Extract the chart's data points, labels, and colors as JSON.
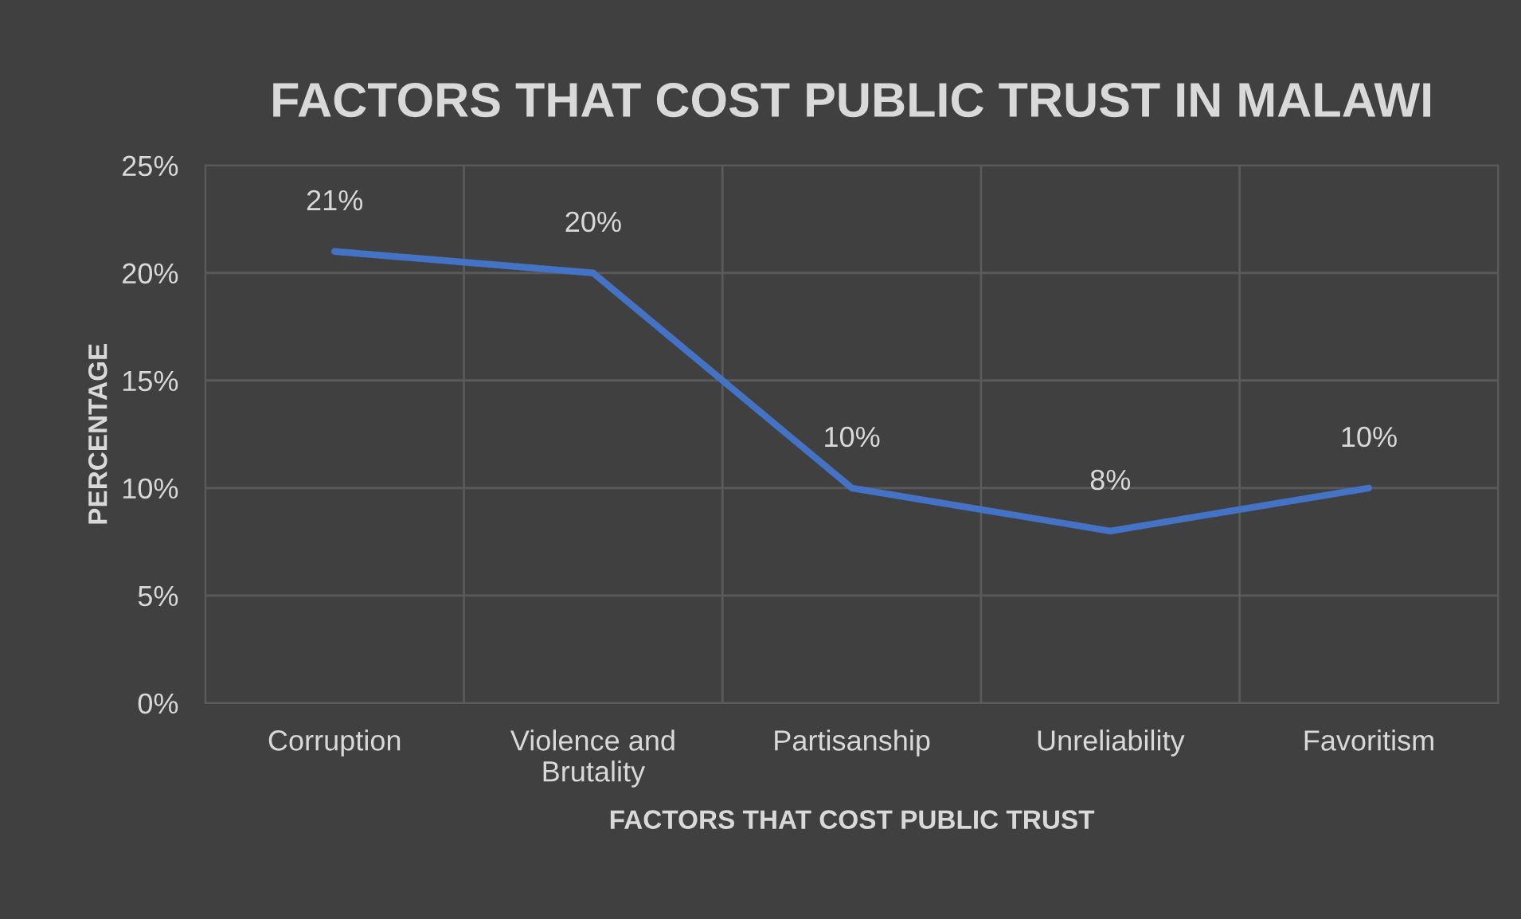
{
  "chart_data": {
    "type": "line",
    "title": "FACTORS THAT COST PUBLIC TRUST IN MALAWI",
    "xlabel": "FACTORS THAT COST PUBLIC TRUST",
    "ylabel": "PERCENTAGE",
    "categories": [
      "Corruption",
      "Violence and Brutality",
      "Partisanship",
      "Unreliability",
      "Favoritism"
    ],
    "series": [
      {
        "color": "#4472c4",
        "values": [
          21,
          20,
          10,
          8,
          10
        ],
        "value_labels": [
          "21%",
          "20%",
          "10%",
          "8%",
          "10%"
        ]
      }
    ],
    "ylim": [
      0,
      25
    ],
    "yticks": [
      {
        "value": 0,
        "label": "0%"
      },
      {
        "value": 5,
        "label": "5%"
      },
      {
        "value": 10,
        "label": "10%"
      },
      {
        "value": 15,
        "label": "15%"
      },
      {
        "value": 20,
        "label": "20%"
      },
      {
        "value": 25,
        "label": "25%"
      }
    ],
    "grid": true,
    "marker": "none",
    "line_style": "solid"
  }
}
